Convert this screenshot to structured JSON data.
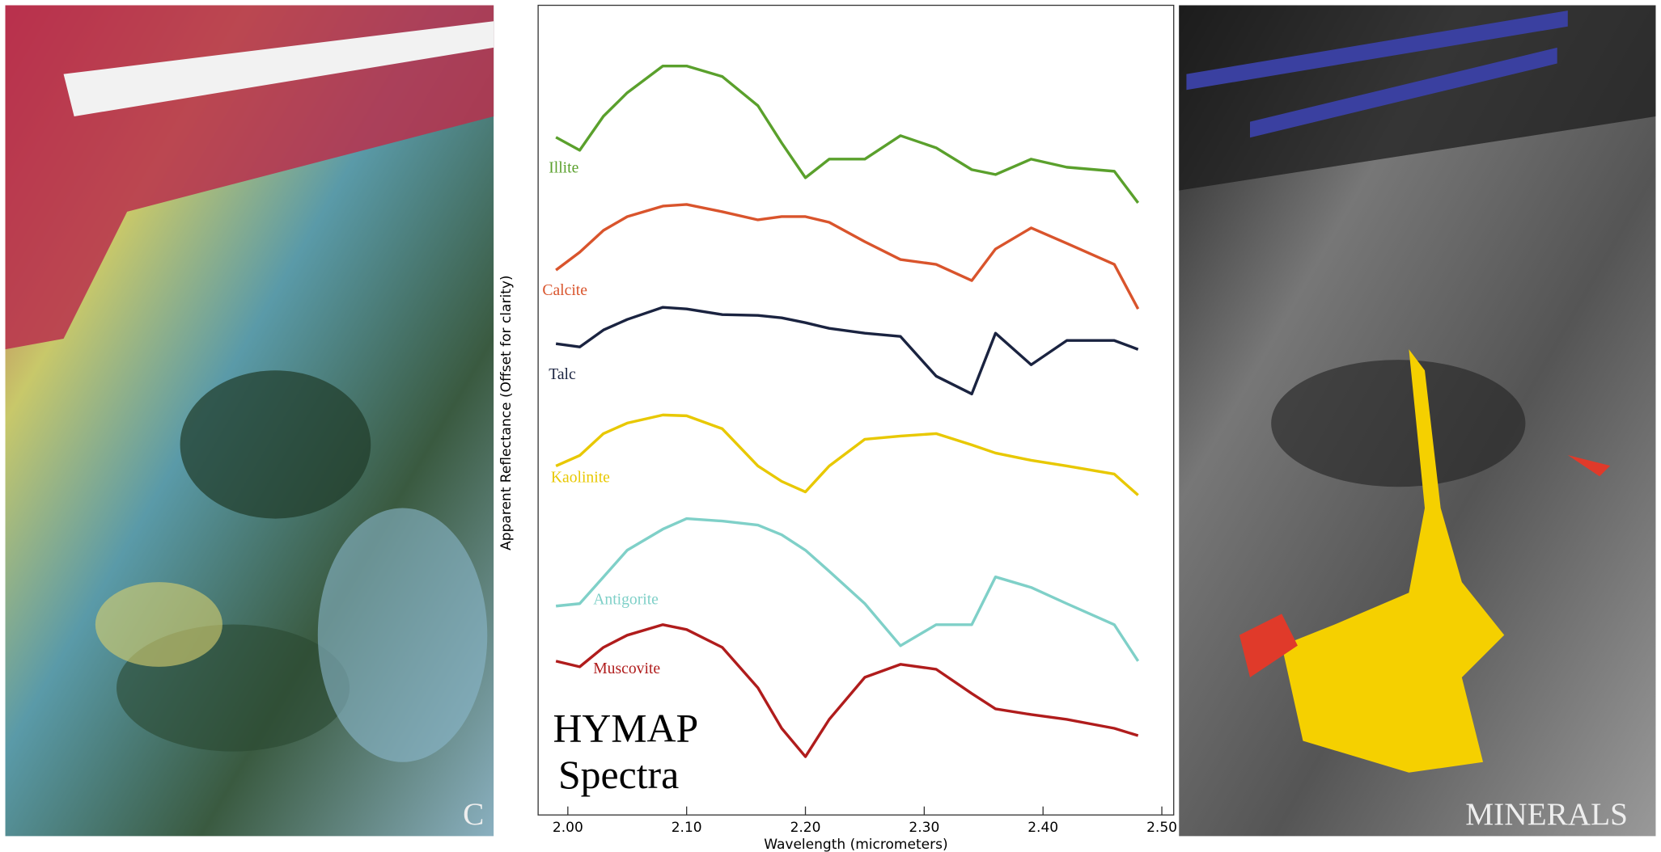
{
  "left_panel_label": "C",
  "right_panel_label": "MINERALS",
  "chart_data": {
    "type": "line",
    "x_label": "Wavelength (micrometers)",
    "y_label": "Apparent Reflectance (Offset for clarity)",
    "annotation": [
      "HYMAP",
      "Spectra"
    ],
    "x": [
      1.99,
      2.01,
      2.03,
      2.05,
      2.08,
      2.1,
      2.13,
      2.16,
      2.18,
      2.2,
      2.22,
      2.25,
      2.28,
      2.31,
      2.34,
      2.36,
      2.39,
      2.42,
      2.46,
      2.48
    ],
    "xlim": [
      1.975,
      2.51
    ],
    "xticks": [
      {
        "value": 2.0,
        "label": "2.00"
      },
      {
        "value": 2.1,
        "label": "2.10"
      },
      {
        "value": 2.2,
        "label": "2.20"
      },
      {
        "value": 2.3,
        "label": "2.30"
      },
      {
        "value": 2.4,
        "label": "2.40"
      },
      {
        "value": 2.5,
        "label": "2.50"
      }
    ],
    "ylim": [
      0,
      100
    ],
    "series": [
      {
        "name": "Illite",
        "color": "#5aa02c",
        "values": [
          83.7,
          82.1,
          86.3,
          89.2,
          92.5,
          92.5,
          91.2,
          87.6,
          83.0,
          78.7,
          81.0,
          81.0,
          83.9,
          82.4,
          79.7,
          79.1,
          81.0,
          80.0,
          79.5,
          75.6
        ]
      },
      {
        "name": "Calcite",
        "color": "#d9542c",
        "values": [
          67.3,
          69.5,
          72.2,
          73.9,
          75.2,
          75.4,
          74.5,
          73.5,
          73.9,
          73.9,
          73.2,
          70.8,
          68.6,
          68.0,
          66.0,
          69.9,
          72.5,
          70.6,
          68.0,
          62.5
        ]
      },
      {
        "name": "Talc",
        "color": "#1a2340",
        "values": [
          58.2,
          57.8,
          59.9,
          61.2,
          62.7,
          62.5,
          61.8,
          61.7,
          61.4,
          60.8,
          60.1,
          59.5,
          59.1,
          54.2,
          52.0,
          59.5,
          55.6,
          58.6,
          58.6,
          57.5
        ]
      },
      {
        "name": "Kaolinite",
        "color": "#e8c800",
        "values": [
          43.1,
          44.4,
          47.1,
          48.4,
          49.4,
          49.3,
          47.7,
          43.1,
          41.2,
          39.9,
          43.1,
          46.4,
          46.8,
          47.1,
          45.7,
          44.7,
          43.8,
          43.1,
          42.1,
          39.5
        ]
      },
      {
        "name": "Antigorite",
        "color": "#7fd0c8",
        "values": [
          25.8,
          26.1,
          29.4,
          32.7,
          35.3,
          36.6,
          36.3,
          35.8,
          34.6,
          32.7,
          30.1,
          26.1,
          20.9,
          23.5,
          23.5,
          29.4,
          28.1,
          26.1,
          23.5,
          19.0
        ]
      },
      {
        "name": "Muscovite",
        "color": "#b01c1c",
        "values": [
          19.0,
          18.3,
          20.7,
          22.2,
          23.5,
          22.9,
          20.7,
          15.7,
          10.7,
          7.2,
          11.8,
          17.0,
          18.6,
          18.0,
          15.0,
          13.1,
          12.4,
          11.8,
          10.7,
          9.8
        ]
      }
    ]
  }
}
